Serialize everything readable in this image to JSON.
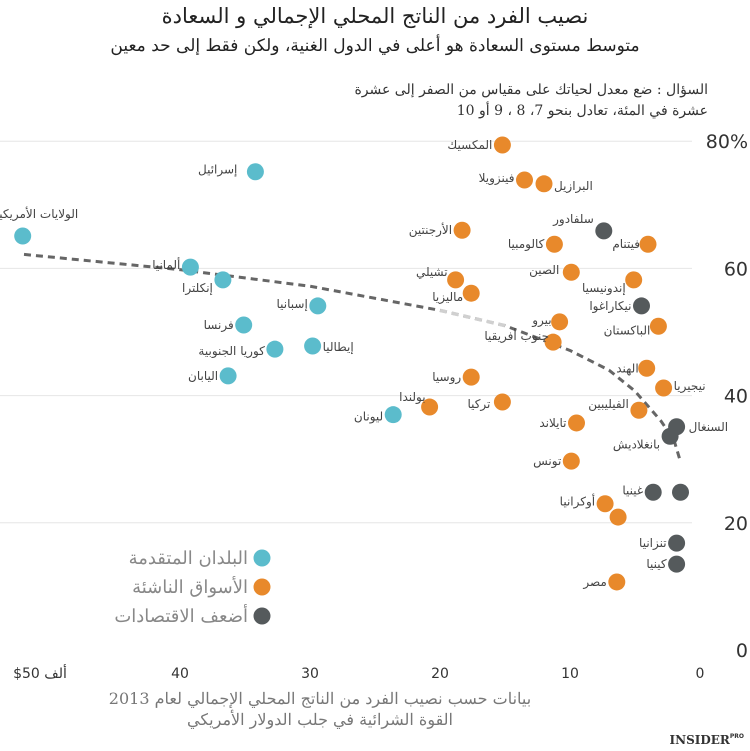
{
  "chart_data": {
    "type": "scatter",
    "title": "نصيب الفرد من الناتج المحلي الإجمالي و السعادة",
    "subtitle": "متوسط مستوى السعادة هو أعلى في الدول الغنية، ولكن فقط إلى حد معين",
    "note": [
      "السؤال : ضع معدل لحياتك على مقياس من الصفر إلى عشرة",
      "عشرة في المئة، تعادل بنحو 7، 8 ، 9 أو 10"
    ],
    "xlabel": [
      "بيانات حسب نصيب الفرد من الناتج المحلي الإجمالي لعام 2013",
      "القوة الشرائية في جلب الدولار الأمريكي"
    ],
    "xlim": [
      52,
      0
    ],
    "ylim": [
      0,
      80
    ],
    "x_reversed": true,
    "xticks": [
      {
        "v": 50,
        "label": "$50 ألف"
      },
      {
        "v": 40,
        "label": "40"
      },
      {
        "v": 30,
        "label": "30"
      },
      {
        "v": 20,
        "label": "20"
      },
      {
        "v": 10,
        "label": "10"
      },
      {
        "v": 0,
        "label": "0"
      }
    ],
    "yticks": [
      {
        "v": 80,
        "label": "80%"
      },
      {
        "v": 60,
        "label": "60"
      },
      {
        "v": 40,
        "label": "40"
      },
      {
        "v": 20,
        "label": "20"
      },
      {
        "v": 0,
        "label": "0"
      }
    ],
    "grid": true,
    "legend_placement": "bottom-left",
    "series": [
      {
        "name": "البلدان المتقدمة",
        "color": "#5bbccc",
        "points": [
          {
            "label": "إسرائيل",
            "x": 34.2,
            "y": 75.2
          },
          {
            "label": "الولايات الأمريكية المتحدة",
            "x": 52.1,
            "y": 65.1
          },
          {
            "label": "ألمانيا",
            "x": 39.2,
            "y": 60.2
          },
          {
            "label": "إنكلترا",
            "x": 36.7,
            "y": 58.2
          },
          {
            "label": "إسبانيا",
            "x": 29.4,
            "y": 54.1
          },
          {
            "label": "فرنسا",
            "x": 35.1,
            "y": 51.1
          },
          {
            "label": "كوريا الجنوبية",
            "x": 32.7,
            "y": 47.3
          },
          {
            "label": "إيطاليا",
            "x": 29.8,
            "y": 47.8
          },
          {
            "label": "اليابان",
            "x": 36.3,
            "y": 43.1
          },
          {
            "label": "ليونان",
            "x": 23.6,
            "y": 37.0
          }
        ]
      },
      {
        "name": "الأسواق الناشئة",
        "color": "#e8892b",
        "points": [
          {
            "label": "المكسيك",
            "x": 15.2,
            "y": 79.4
          },
          {
            "label": "فينزويلا",
            "x": 13.5,
            "y": 73.9
          },
          {
            "label": "البرازيل",
            "x": 12.0,
            "y": 73.3
          },
          {
            "label": "الأرجنتين",
            "x": 18.3,
            "y": 66.0
          },
          {
            "label": "كالومبيا",
            "x": 11.2,
            "y": 63.8
          },
          {
            "label": "فيتنام",
            "x": 4.0,
            "y": 63.8
          },
          {
            "label": "الصين",
            "x": 9.9,
            "y": 59.4
          },
          {
            "label": "إندونيسيا",
            "x": 5.1,
            "y": 58.2
          },
          {
            "label": "تشيلي",
            "x": 18.8,
            "y": 58.2
          },
          {
            "label": "ماليزيا",
            "x": 17.6,
            "y": 56.1
          },
          {
            "label": "بيرو",
            "x": 10.8,
            "y": 51.6
          },
          {
            "label": "الباكستان",
            "x": 3.2,
            "y": 50.9
          },
          {
            "label": "جنوب أفريقيا",
            "x": 11.3,
            "y": 48.4
          },
          {
            "label": "الهند",
            "x": 4.1,
            "y": 44.3
          },
          {
            "label": "روسيا",
            "x": 17.6,
            "y": 42.9
          },
          {
            "label": "نيجيريا",
            "x": 2.8,
            "y": 41.2
          },
          {
            "label": "بولندا",
            "x": 20.8,
            "y": 38.2
          },
          {
            "label": "تركيا",
            "x": 15.2,
            "y": 39.0
          },
          {
            "label": "الفيليبين",
            "x": 4.7,
            "y": 37.7
          },
          {
            "label": "تايلاند",
            "x": 9.5,
            "y": 35.7
          },
          {
            "label": "تونس",
            "x": 9.9,
            "y": 29.7
          },
          {
            "label": "أوكرانيا",
            "x": 7.3,
            "y": 23.0
          },
          {
            "label": "",
            "x": 6.3,
            "y": 20.9
          },
          {
            "label": "مصر",
            "x": 6.4,
            "y": 10.7
          }
        ]
      },
      {
        "name": "أضعف الاقتصادات",
        "color": "#555a5c",
        "points": [
          {
            "label": "سلفادور",
            "x": 7.4,
            "y": 65.9
          },
          {
            "label": "نيكاراغوا",
            "x": 4.5,
            "y": 54.1
          },
          {
            "label": "السنغال",
            "x": 1.8,
            "y": 35.1
          },
          {
            "label": "بانغلاديش",
            "x": 2.3,
            "y": 33.6
          },
          {
            "label": "غينيا",
            "x": 3.6,
            "y": 24.8
          },
          {
            "label": "",
            "x": 1.5,
            "y": 24.8
          },
          {
            "label": "تنزانيا",
            "x": 1.8,
            "y": 16.8
          },
          {
            "label": "كينيا",
            "x": 1.8,
            "y": 13.5
          }
        ]
      }
    ],
    "trendline": {
      "style": "dashed",
      "color": "#666666",
      "points": [
        [
          52,
          62.2
        ],
        [
          40,
          59.8
        ],
        [
          30,
          57.2
        ],
        [
          20,
          53.4
        ],
        [
          15,
          51
        ],
        [
          10,
          47.1
        ],
        [
          7,
          44
        ],
        [
          5,
          40.7
        ],
        [
          3,
          36
        ],
        [
          2,
          33
        ],
        [
          1.5,
          29.6
        ]
      ]
    }
  },
  "branding": {
    "logo": "INSIDER",
    "logo_suffix": "PRO"
  }
}
